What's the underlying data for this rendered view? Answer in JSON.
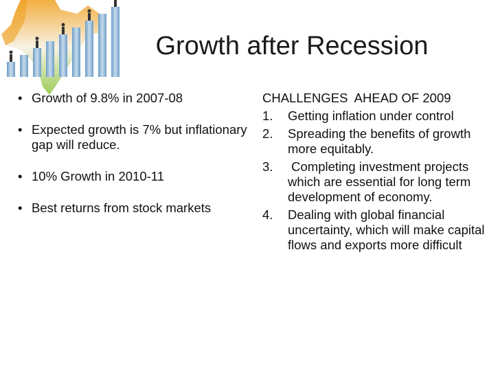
{
  "slide": {
    "title": "Growth after Recession"
  },
  "left_bullets": [
    "Growth of 9.8% in 2007-08",
    "Expected growth is 7% but inflationary gap will reduce.",
    "10% Growth in 2010-11",
    "Best returns from stock markets"
  ],
  "right": {
    "heading": "CHALLENGES  AHEAD OF 2009",
    "items": [
      {
        "num": "1.",
        "text": "Getting inflation under control"
      },
      {
        "num": "2.",
        "text": "Spreading the benefits of growth more equitably."
      },
      {
        "num": "3.",
        "text": " Completing investment projects which are essential for long term development of economy."
      },
      {
        "num": "4.",
        "text": "Dealing with global financial uncertainty, which will make capital flows and exports more difficult"
      }
    ]
  },
  "colors": {
    "map_green": "#8cc43c",
    "map_orange": "#f0a020",
    "bar": "#8ab4d6",
    "figure": "#333333"
  }
}
